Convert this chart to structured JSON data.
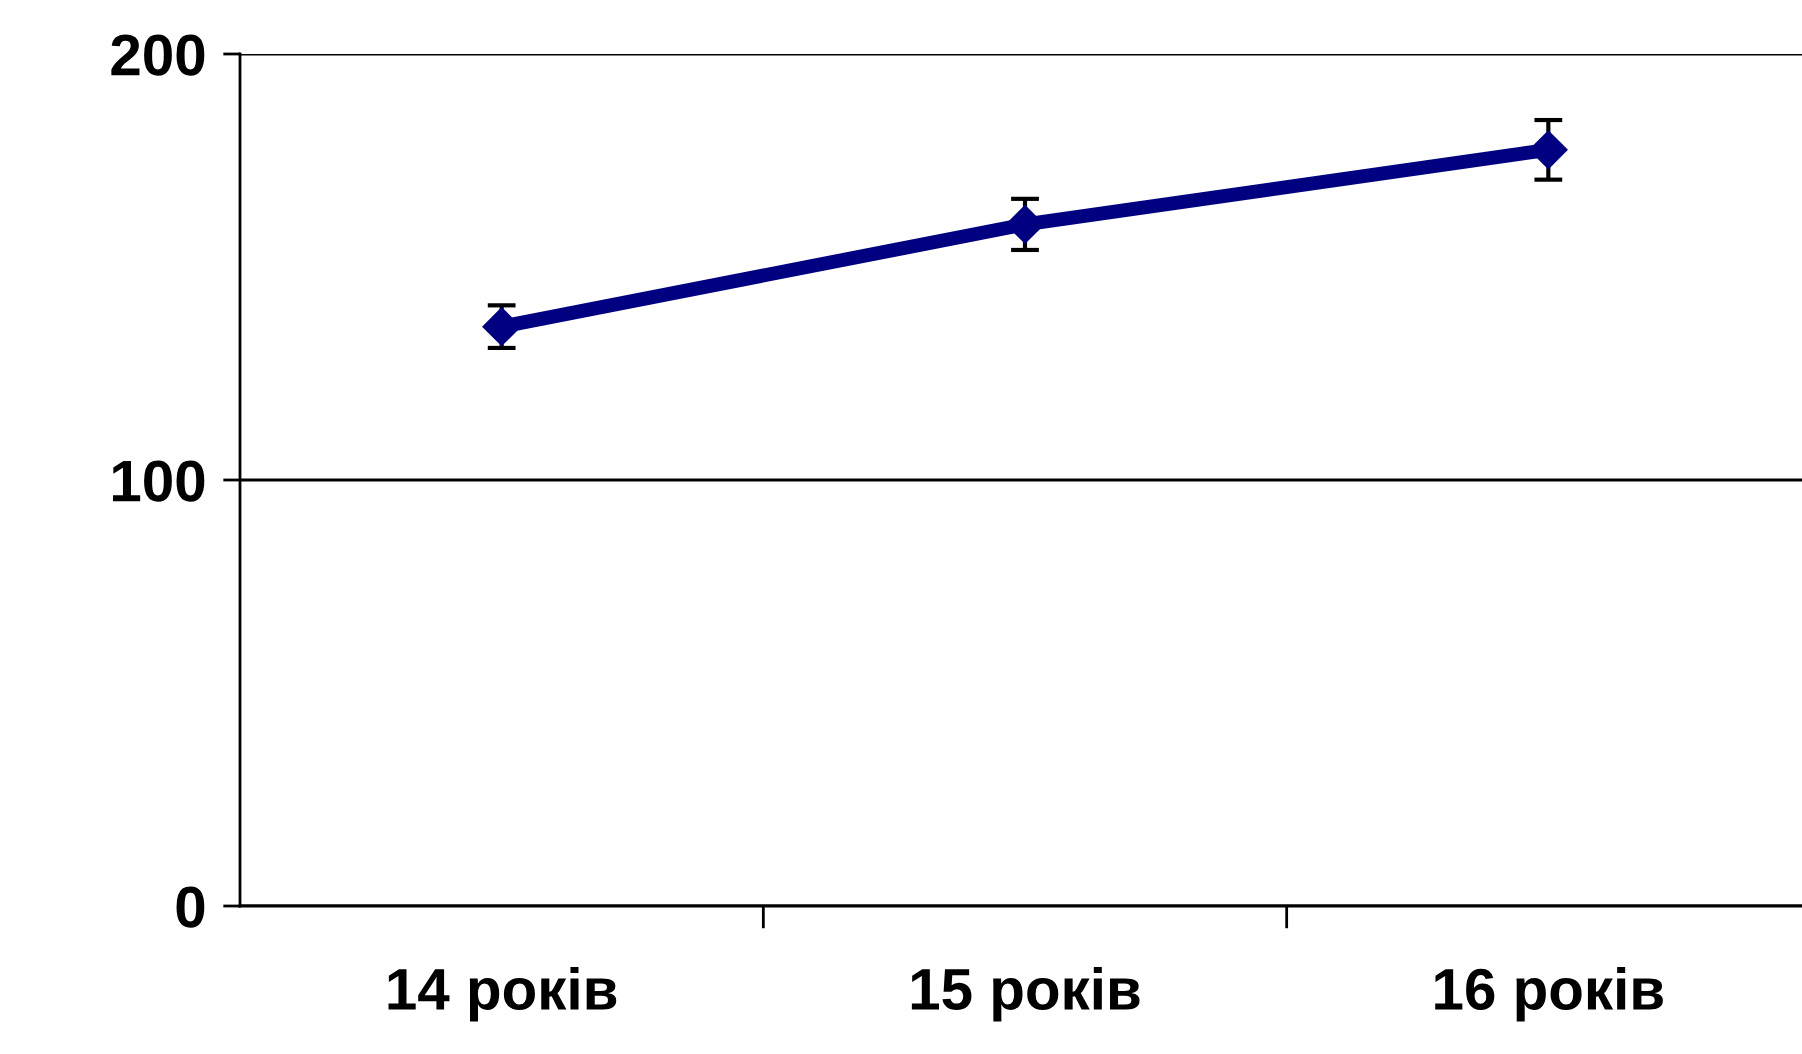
{
  "chart_data": {
    "type": "line",
    "categories": [
      "14 років",
      "15 років",
      "16 років"
    ],
    "series": [
      {
        "color": "#000080",
        "values": [
          136,
          160,
          177.5
        ],
        "errors": [
          5,
          6,
          7
        ]
      }
    ],
    "ylim": [
      0,
      200
    ],
    "yticks": [
      0,
      100,
      200
    ],
    "grid": "y",
    "marker": "diamond",
    "line_style": "solid"
  }
}
